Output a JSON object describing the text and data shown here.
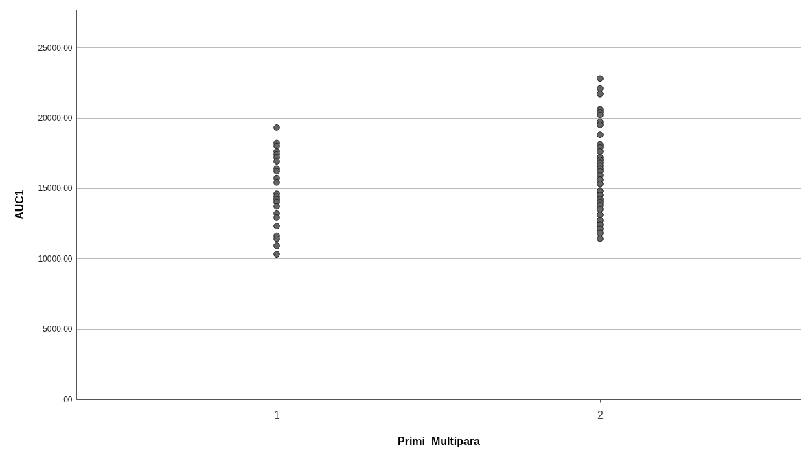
{
  "chart_data": {
    "type": "scatter",
    "xlabel": "Primi_Multipara",
    "ylabel": "AUC1",
    "categories": [
      "1",
      "2"
    ],
    "series": [
      {
        "color": "#666666",
        "x": [
          "1",
          "1",
          "1",
          "1",
          "1",
          "1",
          "1",
          "1",
          "1",
          "1",
          "1",
          "1",
          "1",
          "1",
          "1",
          "1",
          "1",
          "1",
          "1",
          "1",
          "1",
          "1",
          "1",
          "2",
          "2",
          "2",
          "2",
          "2",
          "2",
          "2",
          "2",
          "2",
          "2",
          "2",
          "2",
          "2",
          "2",
          "2",
          "2",
          "2",
          "2",
          "2",
          "2",
          "2",
          "2",
          "2",
          "2",
          "2",
          "2",
          "2",
          "2",
          "2",
          "2",
          "2",
          "2",
          "2"
        ],
        "values": [
          19300,
          18200,
          18000,
          17600,
          17400,
          17200,
          16900,
          16400,
          16200,
          15700,
          15400,
          14600,
          14400,
          14200,
          14000,
          13700,
          13200,
          12900,
          12300,
          11600,
          11400,
          10900,
          10300,
          22800,
          22100,
          21700,
          20600,
          20400,
          20200,
          19700,
          19500,
          18800,
          18100,
          17900,
          17600,
          17200,
          17000,
          16800,
          16600,
          16400,
          16200,
          15900,
          15600,
          15300,
          14800,
          14500,
          14200,
          14000,
          13800,
          13500,
          13100,
          12700,
          12400,
          12100,
          11800,
          11400
        ]
      }
    ],
    "ylim": [
      0,
      27700
    ],
    "yticks": [
      {
        "value": 0,
        "label": ",00"
      },
      {
        "value": 5000,
        "label": "5000,00"
      },
      {
        "value": 10000,
        "label": "10000,00"
      },
      {
        "value": 15000,
        "label": "15000,00"
      },
      {
        "value": 20000,
        "label": "20000,00"
      },
      {
        "value": 25000,
        "label": "25000,00"
      }
    ],
    "grid": "y",
    "marker": "circle"
  }
}
